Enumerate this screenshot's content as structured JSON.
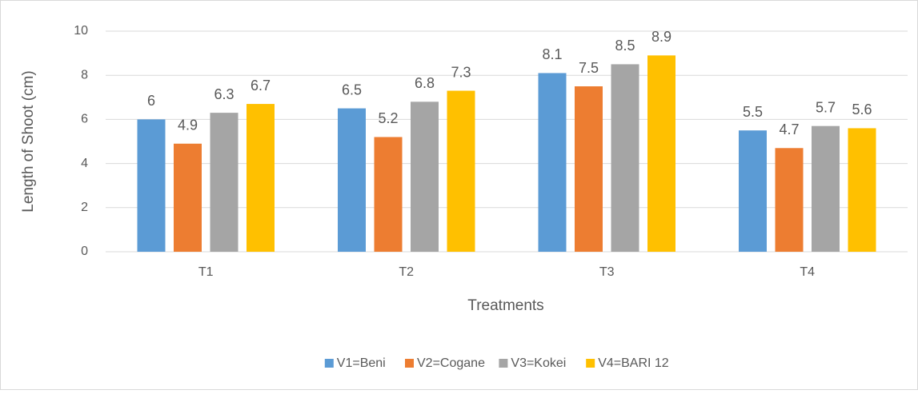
{
  "chart_data": {
    "type": "bar",
    "x_label": "Treatments",
    "y_label": "Length of Shoot (cm)",
    "categories": [
      "T1",
      "T2",
      "T3",
      "T4"
    ],
    "series": [
      {
        "name": "V1=Beni",
        "color": "#5b9bd5",
        "values": [
          6,
          6.5,
          8.1,
          5.5
        ]
      },
      {
        "name": "V2=Cogane",
        "color": "#ed7d31",
        "values": [
          4.9,
          5.2,
          7.5,
          4.7
        ]
      },
      {
        "name": "V3=Kokei",
        "color": "#a5a5a5",
        "values": [
          6.3,
          6.8,
          8.5,
          5.7
        ]
      },
      {
        "name": "V4=BARI 12",
        "color": "#ffc000",
        "values": [
          6.7,
          7.3,
          8.9,
          5.6
        ]
      }
    ],
    "ylim": [
      0,
      10
    ],
    "yticks": [
      0,
      2,
      4,
      6,
      8,
      10
    ],
    "grid": true,
    "legend": "bottom"
  }
}
